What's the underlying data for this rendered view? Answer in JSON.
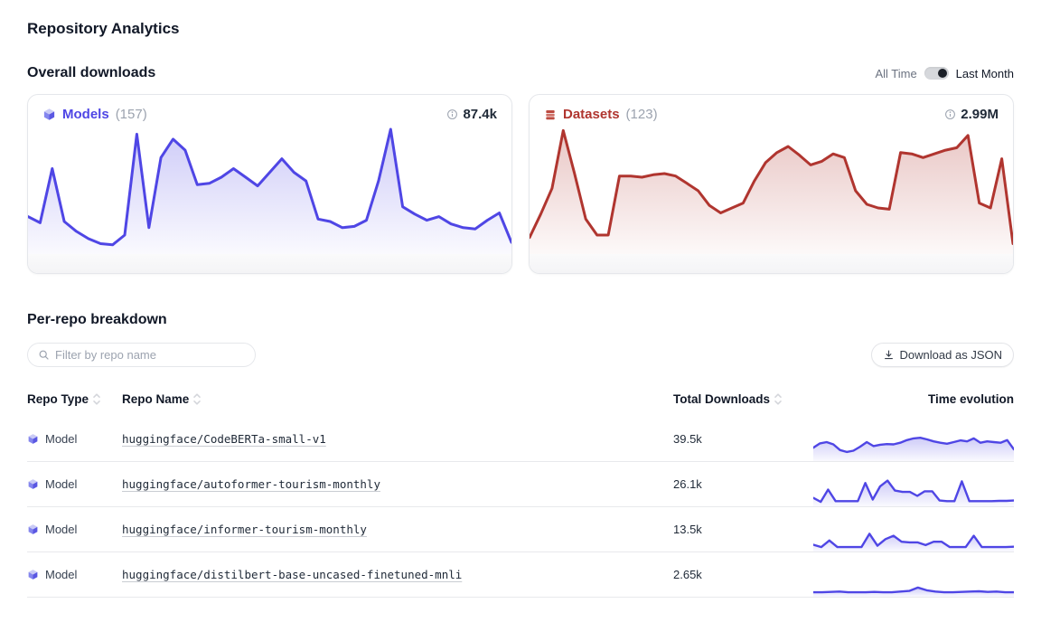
{
  "page_title": "Repository Analytics",
  "overall": {
    "title": "Overall downloads",
    "toggle": {
      "left_label": "All Time",
      "right_label": "Last Month",
      "selected": "Last Month"
    },
    "cards": [
      {
        "label": "Models",
        "count": "(157)",
        "total": "87.4k",
        "accent_color": "#4f46e5",
        "icon": "model-cube-icon"
      },
      {
        "label": "Datasets",
        "count": "(123)",
        "total": "2.99M",
        "accent_color": "#b0352f",
        "icon": "dataset-rows-icon"
      }
    ]
  },
  "per_repo": {
    "title": "Per-repo breakdown",
    "filter_placeholder": "Filter by repo name",
    "filter_value": "",
    "download_button": "Download as JSON",
    "table": {
      "headers": [
        "Repo Type",
        "Repo Name",
        "Total Downloads",
        "Time evolution"
      ],
      "rows": [
        {
          "type": "Model",
          "name": "huggingface/CodeBERTa-small-v1",
          "downloads": "39.5k"
        },
        {
          "type": "Model",
          "name": "huggingface/autoformer-tourism-monthly",
          "downloads": "26.1k"
        },
        {
          "type": "Model",
          "name": "huggingface/informer-tourism-monthly",
          "downloads": "13.5k"
        },
        {
          "type": "Model",
          "name": "huggingface/distilbert-base-uncased-finetuned-mnli",
          "downloads": "2.65k"
        }
      ]
    }
  },
  "icons": {
    "model-cube-icon": "3d cube, indigo",
    "dataset-rows-icon": "stacked rows/database, red",
    "info-icon": "circled i, gray",
    "search-icon": "magnifier, gray",
    "download-icon": "arrow into tray, dark",
    "sort-icon": "up/down chevrons, light gray",
    "toggle-switch": "pill switch, dot on right (Last Month active)"
  },
  "chart_data": {
    "note": "UI shows unlabeled sparx/area charts; values are relative download volume on a 0-100 scale estimated from line heights, ~daily points over the last month",
    "charts": [
      {
        "id": "models",
        "type": "area",
        "title": "Models overall downloads (Last Month)",
        "legend": "Models (157)",
        "total": "87.4k",
        "color": "#4f46e5",
        "grid": false,
        "axes_shown": false,
        "values": [
          29,
          24,
          68,
          25,
          17,
          11,
          7,
          6,
          14,
          96,
          20,
          77,
          92,
          83,
          55,
          56,
          61,
          68,
          61,
          54,
          65,
          76,
          65,
          58,
          27,
          25,
          20,
          21,
          26,
          58,
          100,
          37,
          31,
          26,
          29,
          23,
          20,
          19,
          26,
          32,
          8
        ]
      },
      {
        "id": "datasets",
        "type": "area",
        "title": "Datasets overall downloads (Last Month)",
        "legend": "Datasets (123)",
        "total": "2.99M",
        "color": "#b0352f",
        "grid": false,
        "axes_shown": false,
        "values": [
          12,
          31,
          52,
          99,
          64,
          27,
          14,
          14,
          62,
          62,
          61,
          63,
          64,
          62,
          56,
          50,
          38,
          32,
          36,
          40,
          58,
          73,
          81,
          86,
          79,
          71,
          74,
          80,
          77,
          50,
          39,
          36,
          35,
          81,
          80,
          77,
          80,
          83,
          85,
          95,
          40,
          36,
          76,
          7
        ]
      },
      {
        "id": "spark-0",
        "type": "area",
        "title": "huggingface/CodeBERTa-small-v1 time evolution",
        "color": "#4f46e5",
        "values": [
          35,
          48,
          52,
          45,
          28,
          22,
          26,
          38,
          52,
          40,
          44,
          46,
          45,
          50,
          58,
          63,
          65,
          60,
          54,
          50,
          47,
          52,
          57,
          54,
          63,
          50,
          54,
          52,
          50,
          58,
          30
        ]
      },
      {
        "id": "spark-1",
        "type": "area",
        "title": "huggingface/autoformer-tourism-monthly time evolution",
        "color": "#4f46e5",
        "values": [
          20,
          8,
          45,
          10,
          10,
          10,
          10,
          65,
          15,
          55,
          72,
          42,
          38,
          38,
          26,
          40,
          40,
          12,
          10,
          10,
          70,
          10,
          10,
          10,
          10,
          11,
          11,
          12
        ]
      },
      {
        "id": "spark-2",
        "type": "area",
        "title": "huggingface/informer-tourism-monthly time evolution",
        "color": "#4f46e5",
        "values": [
          15,
          8,
          28,
          8,
          8,
          8,
          8,
          48,
          12,
          32,
          42,
          24,
          22,
          22,
          14,
          24,
          24,
          8,
          8,
          8,
          42,
          8,
          8,
          8,
          8,
          9
        ]
      },
      {
        "id": "spark-3",
        "type": "area",
        "title": "huggingface/distilbert-base-uncased-finetuned-mnli time evolution",
        "color": "#4f46e5",
        "values": [
          8,
          8,
          9,
          10,
          8,
          8,
          8,
          9,
          8,
          8,
          10,
          12,
          22,
          14,
          10,
          8,
          8,
          9,
          10,
          11,
          9,
          10,
          8,
          8
        ]
      }
    ]
  }
}
